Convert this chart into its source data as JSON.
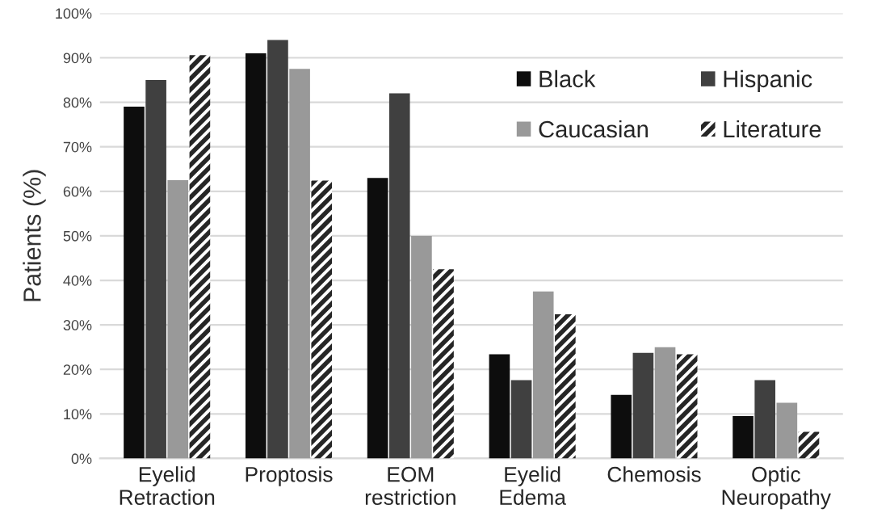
{
  "chart_data": {
    "type": "bar",
    "ylabel": "Patients (%)",
    "categories": [
      "Eyelid\nRetraction",
      "Proptosis",
      "EOM\nrestriction",
      "Eyelid\nEdema",
      "Chemosis",
      "Optic\nNeuropathy"
    ],
    "series": [
      {
        "name": "Black",
        "color": "#0d0d0d",
        "values": [
          79,
          91,
          63,
          23.4,
          14.3,
          9.5
        ]
      },
      {
        "name": "Hispanic",
        "color": "#404040",
        "values": [
          85,
          94,
          82,
          17.6,
          23.7,
          17.6
        ]
      },
      {
        "name": "Caucasian",
        "color": "#999999",
        "values": [
          62.5,
          87.5,
          50,
          37.5,
          25,
          12.5
        ]
      },
      {
        "name": "Literature",
        "color": "#262626",
        "values": [
          90.6,
          62.4,
          42.5,
          32.4,
          23.4,
          6
        ]
      }
    ],
    "ylim": [
      0,
      100
    ],
    "yticks": [
      {
        "value": 0,
        "label": "0%"
      },
      {
        "value": 10,
        "label": "10%"
      },
      {
        "value": 20,
        "label": "20%"
      },
      {
        "value": 30,
        "label": "30%"
      },
      {
        "value": 40,
        "label": "40%"
      },
      {
        "value": 50,
        "label": "50%"
      },
      {
        "value": 60,
        "label": "60%"
      },
      {
        "value": 70,
        "label": "70%"
      },
      {
        "value": 80,
        "label": "80%"
      },
      {
        "value": 90,
        "label": "90%"
      },
      {
        "value": 100,
        "label": "100%"
      }
    ],
    "grid": "y",
    "legend": "top right"
  }
}
